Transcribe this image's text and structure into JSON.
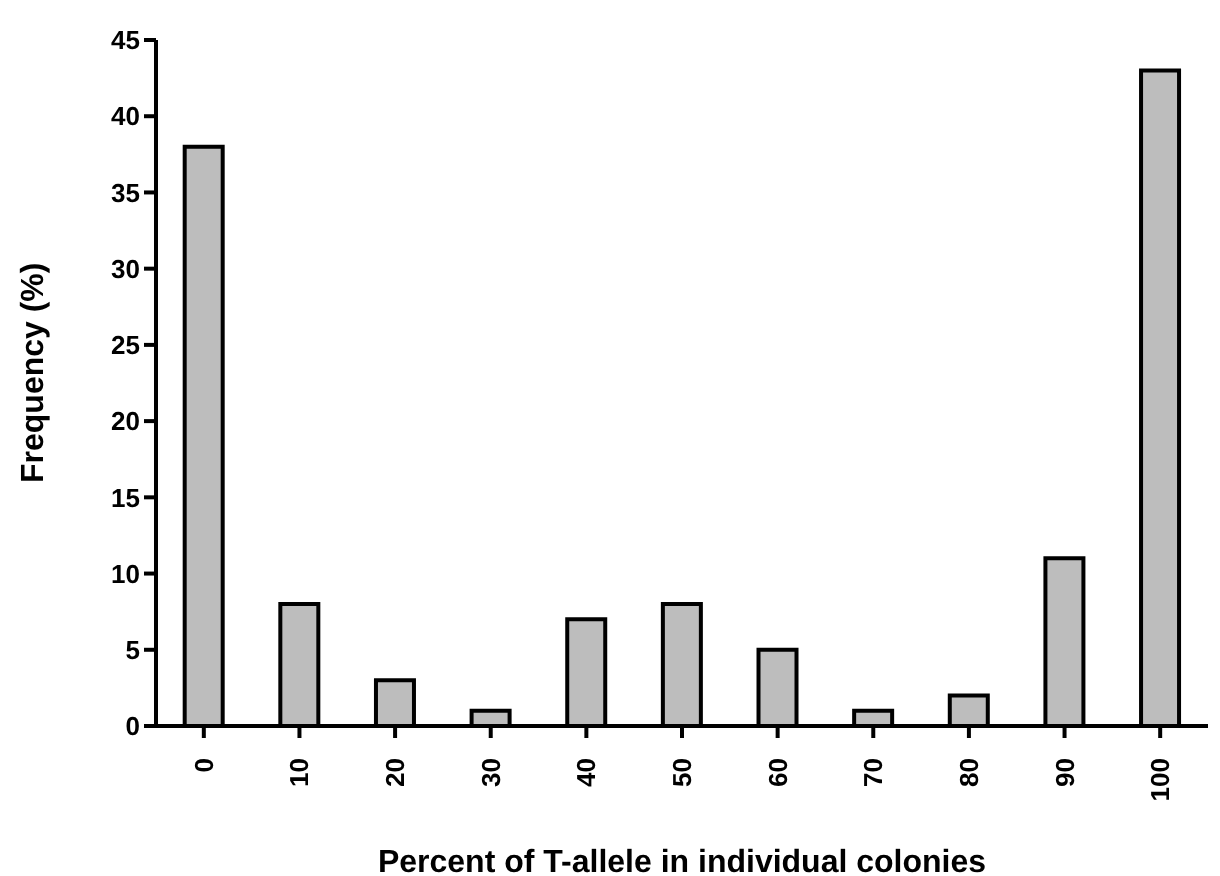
{
  "chart_data": {
    "type": "bar",
    "xlabel": "Percent of T-allele in individual colonies",
    "ylabel": "Frequency (%)",
    "categories": [
      "0",
      "10",
      "20",
      "30",
      "40",
      "50",
      "60",
      "70",
      "80",
      "90",
      "100"
    ],
    "values": [
      38,
      8,
      3,
      1,
      7,
      8,
      5,
      1,
      2,
      11,
      43
    ],
    "color": "#bdbdbd",
    "ylim": [
      0,
      45
    ],
    "yticks": [
      0,
      5,
      10,
      15,
      20,
      25,
      30,
      35,
      40,
      45
    ],
    "grid": false
  }
}
